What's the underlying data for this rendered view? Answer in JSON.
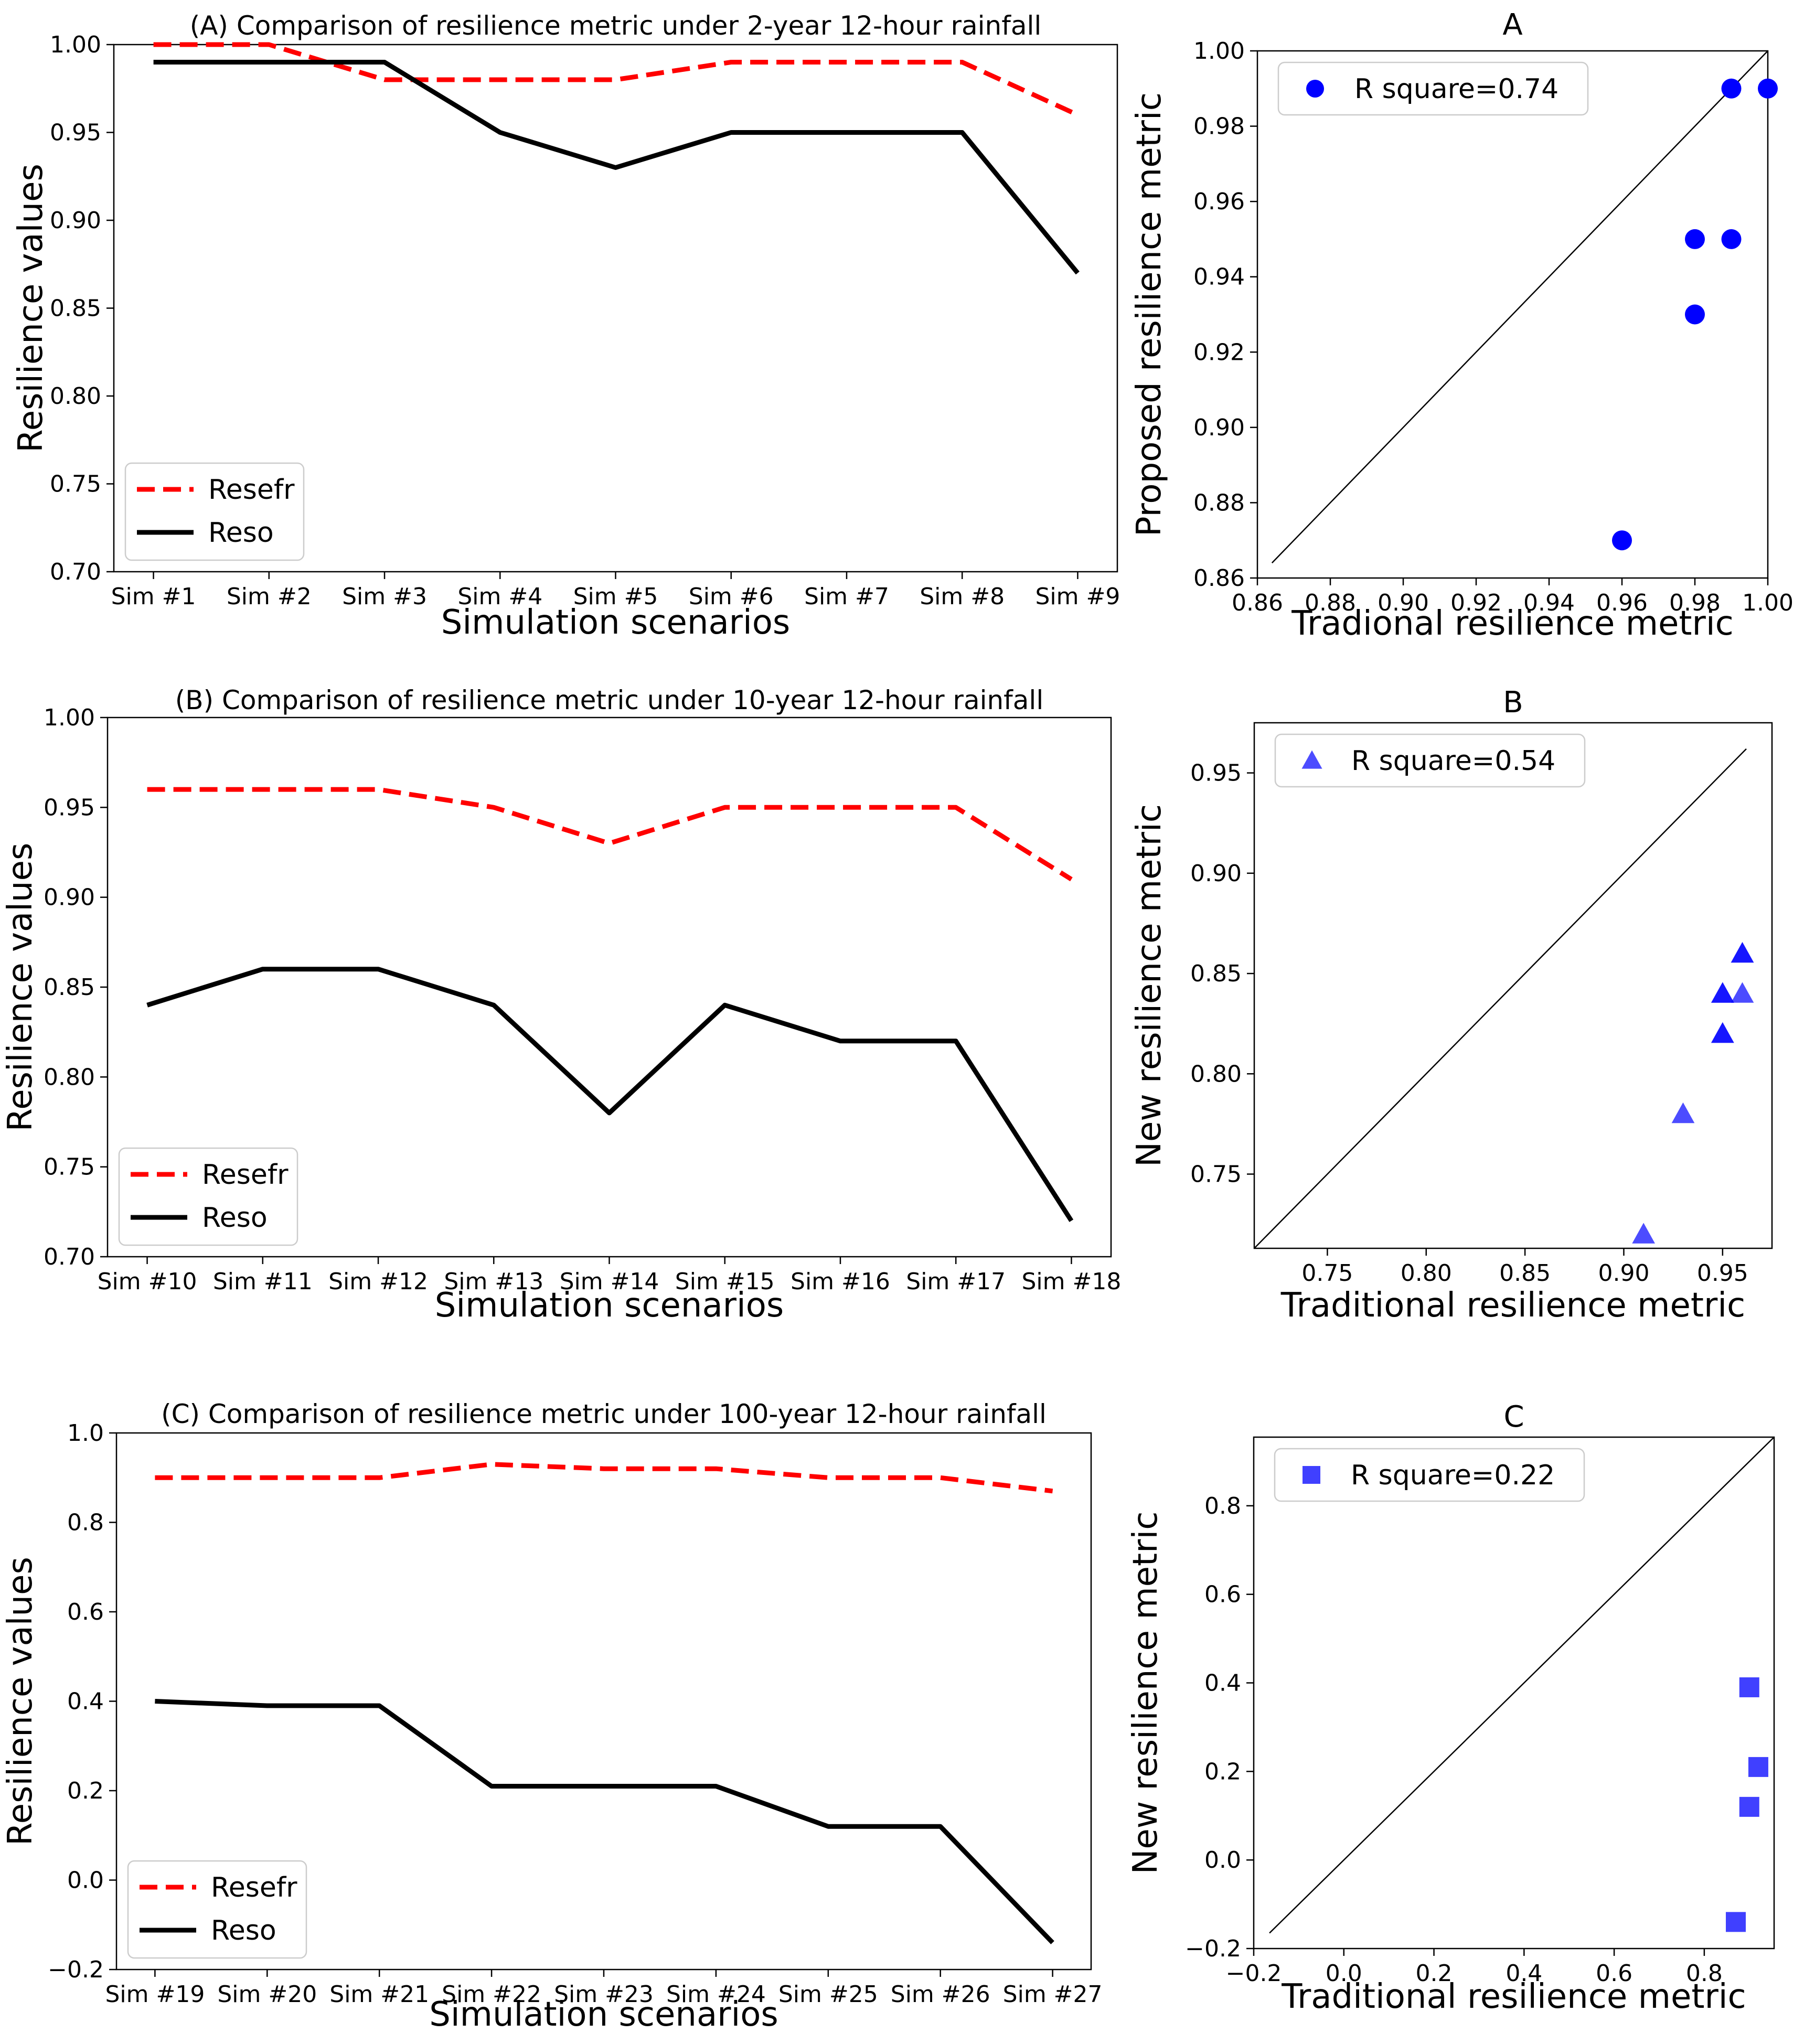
{
  "chart_data": [
    {
      "id": "A_line",
      "type": "line",
      "title": "(A) Comparison of resilience metric under 2-year 12-hour rainfall",
      "xlabel": "Simulation scenarios",
      "ylabel": "Resilience values",
      "categories": [
        "Sim #1",
        "Sim #2",
        "Sim #3",
        "Sim #4",
        "Sim #5",
        "Sim #6",
        "Sim #7",
        "Sim #8",
        "Sim #9"
      ],
      "ylim": [
        0.7,
        1.0
      ],
      "yticks": [
        0.7,
        0.75,
        0.8,
        0.85,
        0.9,
        0.95,
        1.0
      ],
      "ytick_labels": [
        "0.70",
        "0.75",
        "0.80",
        "0.85",
        "0.90",
        "0.95",
        "1.00"
      ],
      "legend_position": "lower-left",
      "series": [
        {
          "name": "Resefr",
          "style": "dashed",
          "color": "#ff0000",
          "values": [
            1.0,
            1.0,
            0.98,
            0.98,
            0.98,
            0.99,
            0.99,
            0.99,
            0.96
          ]
        },
        {
          "name": "Reso",
          "style": "solid",
          "color": "#000000",
          "values": [
            0.99,
            0.99,
            0.99,
            0.95,
            0.93,
            0.95,
            0.95,
            0.95,
            0.87
          ]
        }
      ]
    },
    {
      "id": "A_scatter",
      "type": "scatter",
      "title": "A",
      "xlabel": "Tradional resilience metric",
      "ylabel": "Proposed resilience metric",
      "marker": "circle",
      "color": "#0000ff",
      "opacity": 1,
      "legend_label": "R square=0.74",
      "legend_position": "top-left",
      "xlim": [
        0.86,
        1.0
      ],
      "ylim": [
        0.86,
        1.0
      ],
      "xticks": [
        0.86,
        0.88,
        0.9,
        0.92,
        0.94,
        0.96,
        0.98,
        1.0
      ],
      "xtick_labels": [
        "0.86",
        "0.88",
        "0.90",
        "0.92",
        "0.94",
        "0.96",
        "0.98",
        "1.00"
      ],
      "yticks": [
        0.86,
        0.88,
        0.9,
        0.92,
        0.94,
        0.96,
        0.98,
        1.0
      ],
      "ytick_labels": [
        "0.86",
        "0.88",
        "0.90",
        "0.92",
        "0.94",
        "0.96",
        "0.98",
        "1.00"
      ],
      "identity_line": [
        0.864,
        1.0
      ],
      "points": [
        [
          1.0,
          0.99
        ],
        [
          0.99,
          0.99
        ],
        [
          0.98,
          0.95
        ],
        [
          0.99,
          0.95
        ],
        [
          0.98,
          0.93
        ],
        [
          0.96,
          0.87
        ]
      ]
    },
    {
      "id": "B_line",
      "type": "line",
      "title": "(B) Comparison of resilience metric under 10-year 12-hour rainfall",
      "xlabel": "Simulation scenarios",
      "ylabel": "Resilience values",
      "categories": [
        "Sim #10",
        "Sim #11",
        "Sim #12",
        "Sim #13",
        "Sim #14",
        "Sim #15",
        "Sim #16",
        "Sim #17",
        "Sim #18"
      ],
      "ylim": [
        0.7,
        1.0
      ],
      "yticks": [
        0.7,
        0.75,
        0.8,
        0.85,
        0.9,
        0.95,
        1.0
      ],
      "ytick_labels": [
        "0.70",
        "0.75",
        "0.80",
        "0.85",
        "0.90",
        "0.95",
        "1.00"
      ],
      "legend_position": "lower-left",
      "series": [
        {
          "name": "Resefr",
          "style": "dashed",
          "color": "#ff0000",
          "values": [
            0.96,
            0.96,
            0.96,
            0.95,
            0.93,
            0.95,
            0.95,
            0.95,
            0.91
          ]
        },
        {
          "name": "Reso",
          "style": "solid",
          "color": "#000000",
          "values": [
            0.84,
            0.86,
            0.86,
            0.84,
            0.78,
            0.84,
            0.82,
            0.82,
            0.72
          ]
        }
      ]
    },
    {
      "id": "B_scatter",
      "type": "scatter",
      "title": "B",
      "xlabel": "Traditional resilience metric",
      "ylabel": "New resilience metric",
      "marker": "triangle",
      "color": "#0000ff",
      "opacity": 0.7,
      "legend_label": "R square=0.54",
      "legend_position": "top-left",
      "xlim": [
        0.713,
        0.975
      ],
      "ylim": [
        0.713,
        0.975
      ],
      "xticks": [
        0.75,
        0.8,
        0.85,
        0.9,
        0.95
      ],
      "xtick_labels": [
        "0.75",
        "0.80",
        "0.85",
        "0.90",
        "0.95"
      ],
      "yticks": [
        0.75,
        0.8,
        0.85,
        0.9,
        0.95
      ],
      "ytick_labels": [
        "0.75",
        "0.80",
        "0.85",
        "0.90",
        "0.95"
      ],
      "identity_line": [
        0.713,
        0.962
      ],
      "points": [
        [
          0.96,
          0.84
        ],
        [
          0.96,
          0.86
        ],
        [
          0.96,
          0.86
        ],
        [
          0.95,
          0.84
        ],
        [
          0.93,
          0.78
        ],
        [
          0.95,
          0.84
        ],
        [
          0.95,
          0.82
        ],
        [
          0.95,
          0.82
        ],
        [
          0.91,
          0.72
        ]
      ]
    },
    {
      "id": "C_line",
      "type": "line",
      "title": "(C) Comparison of resilience metric under 100-year 12-hour rainfall",
      "xlabel": "Simulation scenarios",
      "ylabel": "Resilience values",
      "categories": [
        "Sim #19",
        "Sim #20",
        "Sim #21",
        "Sim #22",
        "Sim #23",
        "Sim #24",
        "Sim #25",
        "Sim #26",
        "Sim #27"
      ],
      "ylim": [
        -0.2,
        1.0
      ],
      "yticks": [
        -0.2,
        0.0,
        0.2,
        0.4,
        0.6,
        0.8,
        1.0
      ],
      "ytick_labels": [
        "−0.2",
        "0.0",
        "0.2",
        "0.4",
        "0.6",
        "0.8",
        "1.0"
      ],
      "legend_position": "lower-left",
      "series": [
        {
          "name": "Resefr",
          "style": "dashed",
          "color": "#ff0000",
          "values": [
            0.9,
            0.9,
            0.9,
            0.93,
            0.92,
            0.92,
            0.9,
            0.9,
            0.87
          ]
        },
        {
          "name": "Reso",
          "style": "solid",
          "color": "#000000",
          "values": [
            0.4,
            0.39,
            0.39,
            0.21,
            0.21,
            0.21,
            0.12,
            0.12,
            -0.14
          ]
        }
      ]
    },
    {
      "id": "C_scatter",
      "type": "scatter",
      "title": "C",
      "xlabel": "Traditional resilience metric",
      "ylabel": "New resilience metric",
      "marker": "square",
      "color": "#0000ff",
      "opacity": 0.75,
      "legend_label": "R square=0.22",
      "legend_position": "top-left",
      "xlim": [
        -0.2,
        0.955
      ],
      "ylim": [
        -0.2,
        0.955
      ],
      "xticks": [
        -0.2,
        0.0,
        0.2,
        0.4,
        0.6,
        0.8
      ],
      "xtick_labels": [
        "−0.2",
        "0.0",
        "0.2",
        "0.4",
        "0.6",
        "0.8"
      ],
      "yticks": [
        -0.2,
        0.0,
        0.2,
        0.4,
        0.6,
        0.8
      ],
      "ytick_labels": [
        "−0.2",
        "0.0",
        "0.2",
        "0.4",
        "0.6",
        "0.8"
      ],
      "identity_line": [
        -0.165,
        0.955
      ],
      "points": [
        [
          0.9,
          0.39
        ],
        [
          0.92,
          0.21
        ],
        [
          0.9,
          0.12
        ],
        [
          0.87,
          -0.14
        ]
      ]
    }
  ]
}
